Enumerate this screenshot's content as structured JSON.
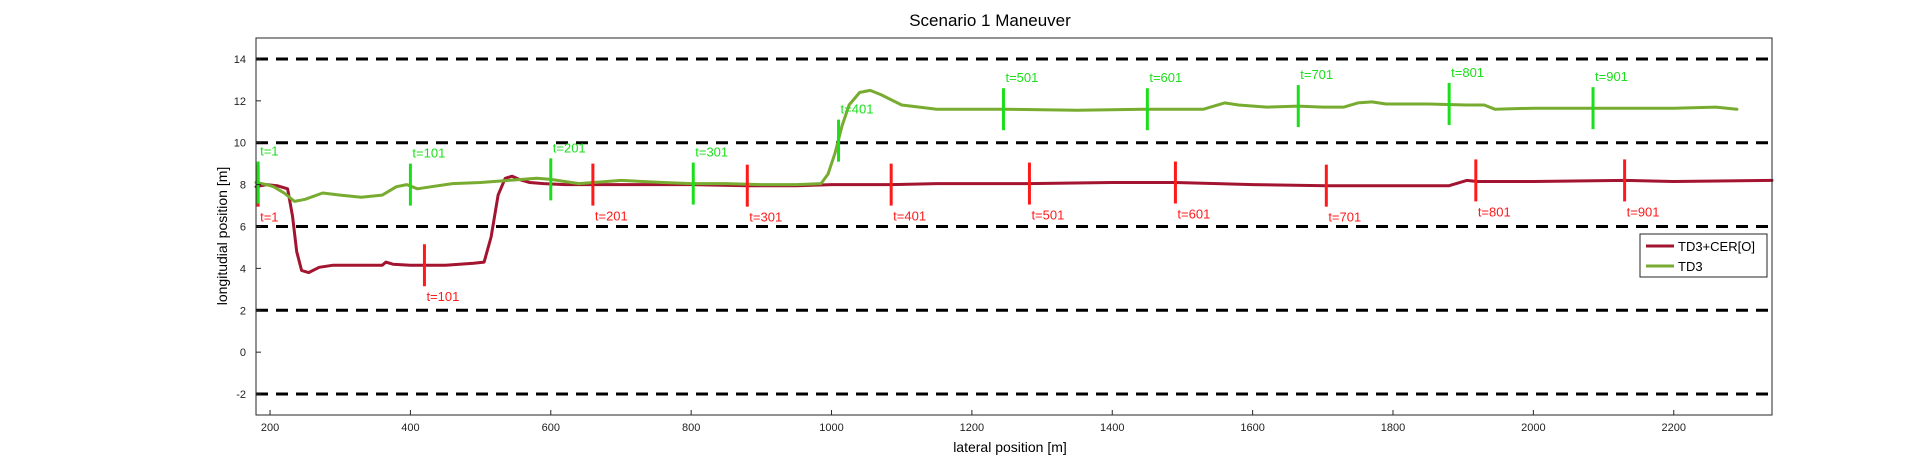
{
  "chart_data": {
    "type": "line",
    "title": "Scenario 1 Maneuver",
    "xlabel": "lateral position [m]",
    "ylabel": "longitudial position [m]",
    "xlim": [
      180,
      2340
    ],
    "ylim": [
      -3,
      15
    ],
    "xticks": [
      200,
      400,
      600,
      800,
      1000,
      1200,
      1400,
      1600,
      1800,
      2000,
      2200
    ],
    "yticks": [
      -2,
      0,
      2,
      4,
      6,
      8,
      10,
      12,
      14
    ],
    "lane_lines_y": [
      -2,
      2,
      6,
      10,
      14
    ],
    "grid": false,
    "legend_position": "right",
    "series": [
      {
        "name": "TD3+CER[O]",
        "color": "#a2142f",
        "x": [
          180,
          195,
          210,
          225,
          232,
          238,
          245,
          255,
          270,
          290,
          320,
          360,
          365,
          375,
          400,
          450,
          490,
          505,
          515,
          525,
          535,
          545,
          555,
          570,
          590,
          620,
          660,
          700,
          750,
          800,
          880,
          950,
          1000,
          1085,
          1150,
          1280,
          1400,
          1490,
          1550,
          1600,
          1705,
          1800,
          1880,
          1905,
          1920,
          2000,
          2130,
          2200,
          2340
        ],
        "y": [
          7.9,
          8.0,
          7.95,
          7.8,
          6.5,
          4.8,
          3.9,
          3.8,
          4.05,
          4.15,
          4.15,
          4.15,
          4.3,
          4.2,
          4.15,
          4.15,
          4.25,
          4.3,
          5.5,
          7.5,
          8.3,
          8.4,
          8.25,
          8.1,
          8.05,
          8.0,
          8.0,
          8.0,
          8.0,
          8.0,
          7.95,
          7.95,
          8.0,
          8.0,
          8.05,
          8.05,
          8.1,
          8.1,
          8.05,
          8.0,
          7.95,
          7.95,
          7.95,
          8.2,
          8.15,
          8.15,
          8.2,
          8.15,
          8.2
        ]
      },
      {
        "name": "TD3",
        "color": "#77ac30",
        "x": [
          180,
          195,
          205,
          220,
          235,
          250,
          275,
          300,
          330,
          360,
          380,
          395,
          410,
          430,
          460,
          500,
          540,
          580,
          600,
          640,
          700,
          760,
          800,
          850,
          900,
          950,
          985,
          995,
          1005,
          1015,
          1025,
          1040,
          1055,
          1070,
          1100,
          1150,
          1245,
          1350,
          1450,
          1530,
          1560,
          1580,
          1620,
          1665,
          1700,
          1730,
          1750,
          1770,
          1790,
          1850,
          1905,
          1930,
          1945,
          2000,
          2085,
          2200,
          2260,
          2290
        ],
        "y": [
          8.1,
          8.0,
          7.9,
          7.6,
          7.2,
          7.3,
          7.6,
          7.5,
          7.4,
          7.5,
          7.9,
          8.0,
          7.8,
          7.9,
          8.05,
          8.1,
          8.2,
          8.3,
          8.25,
          8.05,
          8.2,
          8.1,
          8.05,
          8.05,
          8.0,
          8.0,
          8.05,
          8.5,
          9.5,
          10.8,
          11.8,
          12.4,
          12.5,
          12.3,
          11.8,
          11.6,
          11.6,
          11.55,
          11.6,
          11.6,
          11.9,
          11.8,
          11.7,
          11.75,
          11.7,
          11.7,
          11.9,
          11.95,
          11.85,
          11.85,
          11.8,
          11.8,
          11.6,
          11.65,
          11.65,
          11.65,
          11.7,
          11.6
        ]
      }
    ],
    "timestamp_markers": [
      {
        "series": "TD3+CER[O]",
        "color": "#ff1a1a",
        "label_side": "below",
        "labels": [
          "t=1",
          "t=101",
          "t=201",
          "t=301",
          "t=401",
          "t=501",
          "t=601",
          "t=701",
          "t=801",
          "t=901"
        ],
        "x": [
          183,
          420,
          660,
          880,
          1085,
          1282,
          1490,
          1705,
          1918,
          2130
        ],
        "y": [
          7.95,
          4.15,
          8.0,
          7.95,
          8.0,
          8.05,
          8.1,
          7.95,
          8.2,
          8.2
        ]
      },
      {
        "series": "TD3",
        "color": "#1adf1a",
        "label_side": "above",
        "labels": [
          "t=1",
          "t=101",
          "t=201",
          "t=301",
          "t=401",
          "t=501",
          "t=601",
          "t=701",
          "t=801",
          "t=901"
        ],
        "x": [
          183,
          400,
          600,
          803,
          1010,
          1245,
          1450,
          1665,
          1880,
          2085
        ],
        "y": [
          8.1,
          8.0,
          8.25,
          8.05,
          10.1,
          11.6,
          11.6,
          11.75,
          11.85,
          11.65
        ]
      }
    ]
  }
}
